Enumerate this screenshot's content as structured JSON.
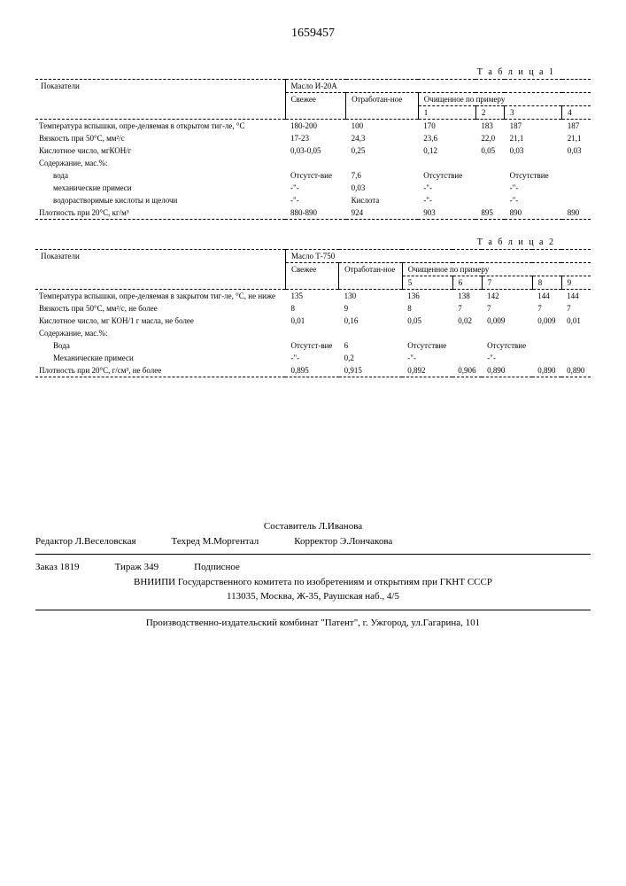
{
  "doc_number": "1659457",
  "table1": {
    "label": "Т а б л и ц а  1",
    "header_group": "Масло И-20А",
    "col_indicator": "Показатели",
    "col_fresh": "Свежее",
    "col_used": "Отработан-ное",
    "col_cleaned": "Очищенное по примеру",
    "cleaned_cols": [
      "1",
      "2",
      "3",
      "4"
    ],
    "rows": [
      {
        "label": "Температура вспышки, опре-деляемая в открытом тиг-ле, °С",
        "vals": [
          "180-200",
          "100",
          "170",
          "183",
          "187",
          "187"
        ]
      },
      {
        "label": "Вязкость при 50°С, мм²/с",
        "vals": [
          "17-23",
          "24,3",
          "23,6",
          "22,0",
          "21,1",
          "21,1"
        ]
      },
      {
        "label": "Кислотное число, мгКОН/г",
        "vals": [
          "0,03-0,05",
          "0,25",
          "0,12",
          "0,05",
          "0,03",
          "0,03"
        ]
      },
      {
        "label": "Содержание, мас.%:",
        "vals": [
          "",
          "",
          "",
          "",
          "",
          ""
        ]
      },
      {
        "label": "вода",
        "indent": true,
        "vals": [
          "Отсутст-вие",
          "7,6",
          "Отсутствие",
          "",
          "Отсутствие",
          ""
        ]
      },
      {
        "label": "механические примеси",
        "indent": true,
        "vals": [
          "-\"-",
          "0,03",
          "-\"-",
          "",
          "-\"-",
          ""
        ]
      },
      {
        "label": "водорастворимые кислоты и щелочи",
        "indent": true,
        "vals": [
          "-\"-",
          "Кислота",
          "-\"-",
          "",
          "-\"-",
          ""
        ]
      },
      {
        "label": "Плотность при 20°С, кг/м³",
        "vals": [
          "880-890",
          "924",
          "903",
          "895",
          "890",
          "890"
        ]
      }
    ]
  },
  "table2": {
    "label": "Т а б л и ц а  2",
    "header_group": "Масло Т-750",
    "col_indicator": "Показатели",
    "col_fresh": "Свежее",
    "col_used": "Отработан-ное",
    "col_cleaned": "Очищенное по примеру",
    "cleaned_cols": [
      "5",
      "6",
      "7",
      "8",
      "9"
    ],
    "rows": [
      {
        "label": "Температура вспышки, опре-деляемая в закрытом тиг-ле, °С, не ниже",
        "vals": [
          "135",
          "130",
          "136",
          "138",
          "142",
          "144",
          "144"
        ]
      },
      {
        "label": "Вязкость при 50°С, мм²/с, не более",
        "vals": [
          "8",
          "9",
          "8",
          "7",
          "7",
          "7",
          "7"
        ]
      },
      {
        "label": "Кислотное число, мг КОН/1 г масла, не более",
        "vals": [
          "0,01",
          "0,16",
          "0,05",
          "0,02",
          "0,009",
          "0,009",
          "0,01"
        ]
      },
      {
        "label": "Содержание, мас.%:",
        "vals": [
          "",
          "",
          "",
          "",
          "",
          "",
          ""
        ]
      },
      {
        "label": "Вода",
        "indent": true,
        "vals": [
          "Отсутст-вие",
          "6",
          "Отсутствие",
          "",
          "Отсутствие",
          "",
          ""
        ]
      },
      {
        "label": "Механические примеси",
        "indent": true,
        "vals": [
          "-\"-",
          "0,2",
          "-\"-",
          "",
          "-\"-",
          "",
          ""
        ]
      },
      {
        "label": "Плотность при 20°С, г/см³, не более",
        "vals": [
          "0,895",
          "0,915",
          "0,892",
          "0,906",
          "0,890",
          "0,890",
          "0,890"
        ]
      }
    ]
  },
  "footer": {
    "compiler": "Составитель Л.Иванова",
    "editor": "Редактор Л.Веселовская",
    "techred": "Техред М.Моргентал",
    "corrector": "Корректор Э.Лончакова",
    "order": "Заказ 1819",
    "tirazh": "Тираж 349",
    "subscribe": "Подписное",
    "org": "ВНИИПИ Государственного комитета по изобретениям и открытиям при ГКНТ СССР",
    "addr": "113035, Москва, Ж-35, Раушская наб., 4/5",
    "printer": "Производственно-издательский комбинат \"Патент\", г. Ужгород, ул.Гагарина, 101"
  }
}
